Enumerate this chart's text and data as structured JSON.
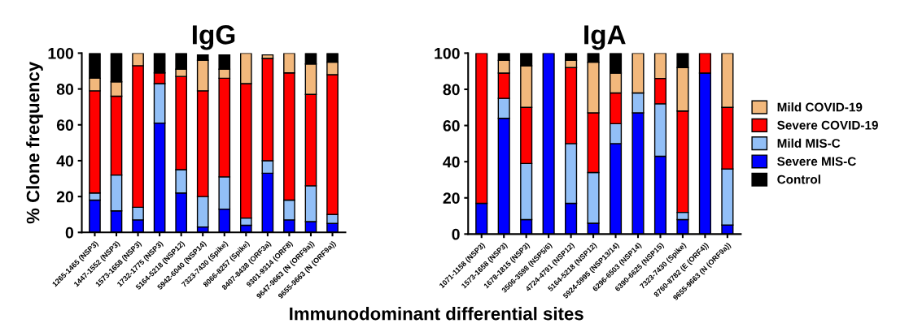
{
  "chart_data": [
    {
      "type": "bar",
      "title": "IgG",
      "ylabel": "% Clone frequency",
      "xlabel": "Immunodominant differential sites",
      "stacked": true,
      "categories": [
        "1265-1465 (NSP3)",
        "1447-1552 (NSP3)",
        "1573-1658 (NSP3)",
        "1732-1775 (NSP3)",
        "5164-5218 (NSP12)",
        "5942-6040 (NSP14)",
        "7323-7430 (Spike)",
        "8066-8257 (Spike)",
        "8407-8438 (ORF3a)",
        "9301-9314 (ORF8)",
        "9647-9663 (N (ORF9a))",
        "9655-9663 (N (ORF9a))"
      ],
      "series": [
        {
          "color": "#0000ff",
          "values": [
            18,
            12,
            7,
            61,
            22,
            3,
            13,
            4,
            33,
            7,
            6,
            5
          ]
        },
        {
          "color": "#92bff7",
          "values": [
            4,
            20,
            7,
            22,
            13,
            17,
            18,
            4,
            7,
            11,
            20,
            5
          ]
        },
        {
          "color": "#ff0000",
          "values": [
            57,
            44,
            79,
            6,
            52,
            59,
            55,
            75,
            57,
            71,
            51,
            78
          ]
        },
        {
          "color": "#f2b87c",
          "values": [
            7,
            8,
            7,
            0,
            4,
            17,
            5,
            17,
            2,
            11,
            17,
            7
          ]
        },
        {
          "color": "#000000",
          "values": [
            14,
            16,
            0,
            11,
            9,
            3,
            8,
            0,
            0,
            0,
            6,
            5
          ]
        }
      ],
      "ylim": [
        0,
        100
      ],
      "yticks": [
        0,
        20,
        40,
        60,
        80,
        100
      ],
      "grid": false,
      "legend": false
    },
    {
      "type": "bar",
      "title": "IgA",
      "stacked": true,
      "categories": [
        "1071-1158 (NSP3)",
        "1573-1658 (NSP3)",
        "1678-1815 (NSP3)",
        "3506-3598 (NSP5/6)",
        "4724-4791 (NSP12)",
        "5164-5218 (NSP12)",
        "5924-5995 (NSP13/14)",
        "6296-6503 (NSP14)",
        "6390-6625 (NSP15)",
        "7323-7430 (Spike)",
        "8760-8782 (E (ORF4))",
        "9655-9663 (N (ORF9a))"
      ],
      "series": [
        {
          "name": "Severe MIS-C",
          "color": "#0000ff",
          "values": [
            17,
            64,
            8,
            100,
            17,
            6,
            50,
            67,
            43,
            8,
            89,
            5
          ]
        },
        {
          "name": "Mild MIS-C",
          "color": "#92bff7",
          "values": [
            0,
            11,
            31,
            0,
            33,
            28,
            11,
            11,
            29,
            4,
            0,
            31
          ]
        },
        {
          "name": "Severe COVID-19",
          "color": "#ff0000",
          "values": [
            83,
            14,
            31,
            0,
            42,
            33,
            17,
            0,
            14,
            56,
            11,
            34
          ]
        },
        {
          "name": "Mild COVID-19",
          "color": "#f2b87c",
          "values": [
            0,
            7,
            23,
            0,
            4,
            28,
            11,
            22,
            14,
            24,
            0,
            30
          ]
        },
        {
          "name": "Control",
          "color": "#000000",
          "values": [
            0,
            4,
            7,
            0,
            4,
            5,
            11,
            0,
            0,
            8,
            0,
            0
          ]
        }
      ],
      "ylim": [
        0,
        100
      ],
      "yticks": [
        0,
        20,
        40,
        60,
        80,
        100
      ],
      "grid": false,
      "legend": "right"
    }
  ]
}
